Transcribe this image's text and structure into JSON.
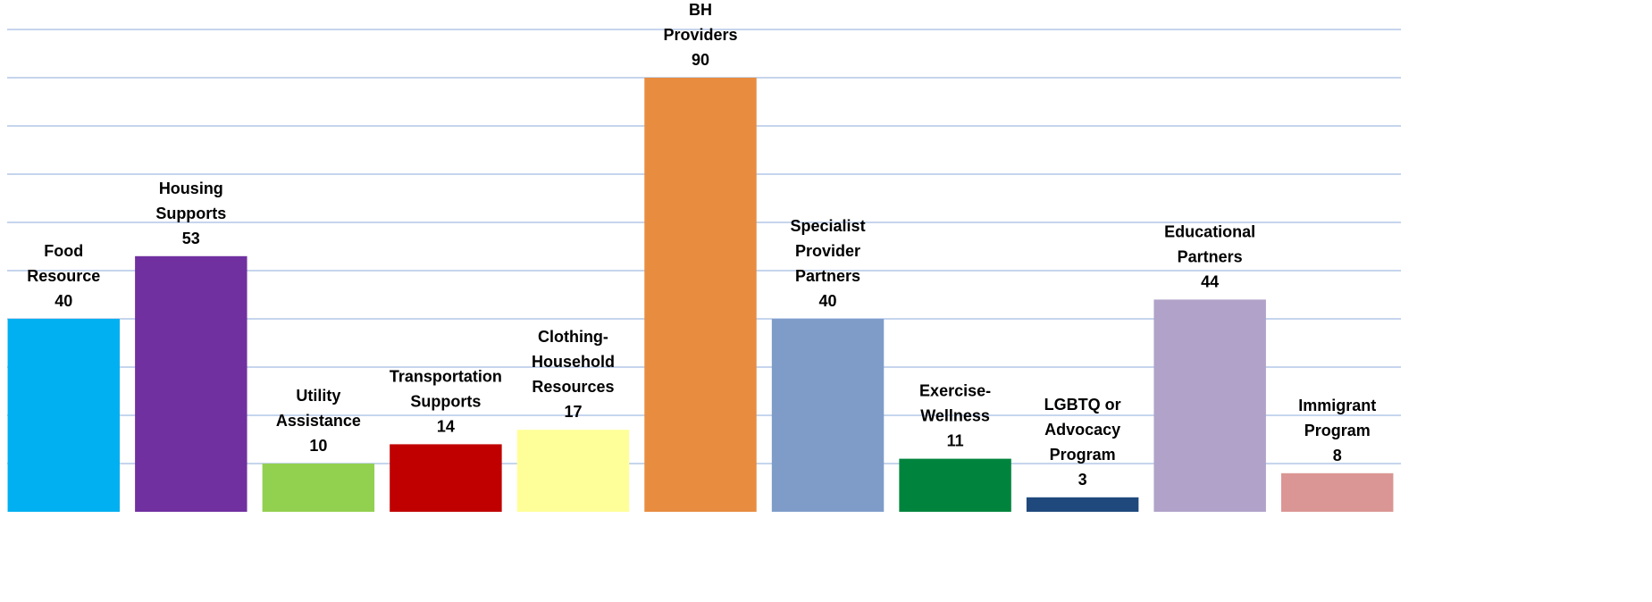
{
  "chart_data": {
    "type": "bar",
    "categories": [
      "Food Resource",
      "Housing Supports",
      "Utility Assistance",
      "Transportation Supports",
      "Clothing-Household Resources",
      "BH Providers",
      "Specialist Provider Partners",
      "Exercise-Wellness",
      "LGBTQ or Advocacy Program",
      "Educational Partners",
      "Immigrant Program"
    ],
    "values": [
      40,
      53,
      10,
      14,
      17,
      90,
      40,
      11,
      3,
      44,
      8
    ],
    "colors": [
      "#00b0f0",
      "#7030a0",
      "#92d050",
      "#c00000",
      "#ffff99",
      "#e88c40",
      "#7f9cc9",
      "#00843d",
      "#1f497d",
      "#b0a2c8",
      "#da9694"
    ],
    "ylim": [
      0,
      100
    ],
    "yticks": [
      10,
      20,
      30,
      40,
      50,
      60,
      70,
      80,
      90,
      100
    ],
    "grid": true
  }
}
